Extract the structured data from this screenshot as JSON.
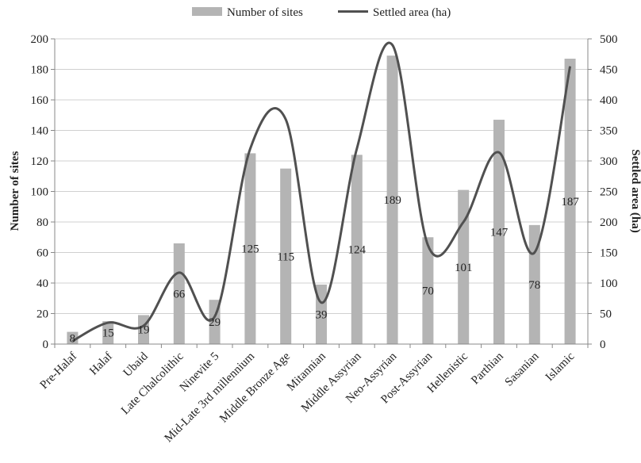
{
  "chart_data": {
    "type": "bar+line",
    "categories": [
      "Pre-Halaf",
      "Halaf",
      "Ubaid",
      "Late Chalcolithic",
      "Ninevite 5",
      "Mid-Late 3rd millennium",
      "Middle Bronze Age",
      "Mitannian",
      "Middle Assyrian",
      "Neo-Assyrian",
      "Post-Assyrian",
      "Hellenistic",
      "Parthian",
      "Sasanian",
      "Islamic"
    ],
    "series": [
      {
        "name": "Number of sites",
        "type": "bar",
        "axis": "left",
        "color": "#b4b4b4",
        "values": [
          8,
          15,
          19,
          66,
          29,
          125,
          115,
          39,
          124,
          189,
          70,
          101,
          147,
          78,
          187
        ],
        "data_labels": [
          "8",
          "15",
          "19",
          "66",
          "29",
          "125",
          "115",
          "39",
          "124",
          "189",
          "70",
          "101",
          "147",
          "78",
          "187"
        ]
      },
      {
        "name": "Settled area (ha)",
        "type": "line",
        "axis": "right",
        "color": "#505050",
        "smooth": true,
        "values": [
          5,
          35,
          30,
          117,
          45,
          320,
          368,
          68,
          320,
          490,
          162,
          200,
          314,
          150,
          455
        ]
      }
    ],
    "ylabel_left": "Number of sites",
    "ylabel_right": "Settled area (ha)",
    "ylim_left": [
      0,
      200
    ],
    "ylim_right": [
      0,
      500
    ],
    "yticks_left": [
      "0",
      "20",
      "40",
      "60",
      "80",
      "100",
      "120",
      "140",
      "160",
      "180",
      "200"
    ],
    "yticks_right": [
      "0",
      "50",
      "100",
      "150",
      "200",
      "250",
      "300",
      "350",
      "400",
      "450",
      "500"
    ],
    "grid": true,
    "legend_position": "top-center"
  }
}
